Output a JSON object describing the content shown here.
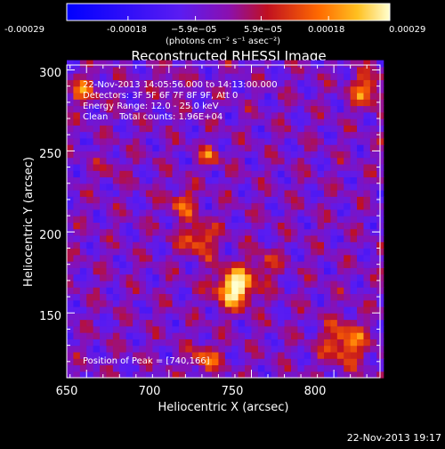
{
  "chart_data": {
    "type": "heatmap",
    "title": "Reconstructed RHESSI Image",
    "xlabel": "Heliocentric X (arcsec)",
    "ylabel": "Heliocentric Y (arcsec)",
    "xlim": [
      638,
      828
    ],
    "ylim": [
      110,
      303
    ],
    "x_ticks": [
      "650",
      "700",
      "750",
      "800"
    ],
    "y_ticks": [
      "150",
      "200",
      "250",
      "300"
    ],
    "colorbar": {
      "ticks": [
        "-0.00029",
        "-0.00018",
        "−5.9e−05",
        "5.9e−05",
        "0.00018",
        "0.00029"
      ],
      "range": [
        -0.00029,
        0.00029
      ],
      "units_label": "(photons cm⁻² s⁻¹ asec⁻²)"
    },
    "info_lines": [
      "22-Nov-2013 14:05:56.000 to 14:13:00.000",
      "Detectors: 3F 5F 6F 7F 8F 9F, Att 0",
      "Energy Range: 12.0 - 25.0 keV",
      "Clean    Total counts: 1.96E+04"
    ],
    "peak_label": "Position of Peak = [740,166]",
    "peak": [
      740,
      166
    ],
    "sources": [
      {
        "x": 740,
        "y": 166,
        "amp": 1.0,
        "sigma": 8
      },
      {
        "x": 718,
        "y": 196,
        "amp": 0.55,
        "sigma": 7
      },
      {
        "x": 708,
        "y": 218,
        "amp": 0.45,
        "sigma": 6
      },
      {
        "x": 725,
        "y": 247,
        "amp": 0.5,
        "sigma": 4
      },
      {
        "x": 758,
        "y": 180,
        "amp": 0.35,
        "sigma": 6
      },
      {
        "x": 807,
        "y": 132,
        "amp": 0.6,
        "sigma": 9
      },
      {
        "x": 820,
        "y": 288,
        "amp": 0.55,
        "sigma": 7
      },
      {
        "x": 648,
        "y": 288,
        "amp": 0.45,
        "sigma": 6
      },
      {
        "x": 722,
        "y": 122,
        "amp": 0.5,
        "sigma": 6
      },
      {
        "x": 665,
        "y": 240,
        "amp": 0.2,
        "sigma": 5
      },
      {
        "x": 700,
        "y": 292,
        "amp": 0.25,
        "sigma": 5
      }
    ]
  },
  "footer": {
    "timestamp": "22-Nov-2013 19:17"
  }
}
